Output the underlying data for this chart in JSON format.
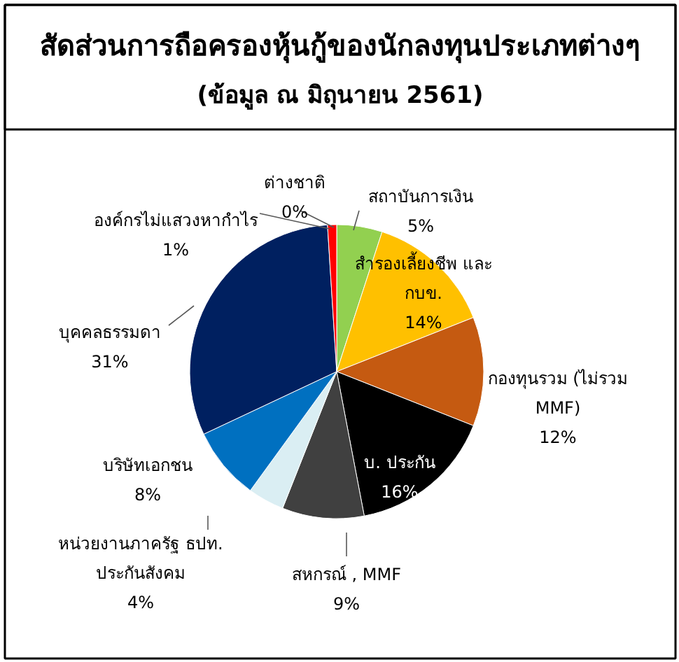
{
  "chart_data": {
    "type": "pie",
    "title": "สัดส่วนการถือครองหุ้นกู้ของนักลงทุนประเภทต่างๆ",
    "subtitle": "(ข้อมูล ณ มิถุนายน 2561)",
    "categories": [
      "ต่างชาติ",
      "สถาบันการเงิน",
      "สำรองเลี้ยงชีพ และ กบข.",
      "กองทุนรวม (ไม่รวม MMF)",
      "บ. ประกัน",
      "สหกรณ์ , MMF",
      "หน่วยงานภาครัฐ ธปท. ประกันสังคม",
      "บริษัทเอกชน",
      "บุคคลธรรมดา",
      "องค์กรไม่แสวงหากำไร"
    ],
    "values": [
      0,
      5,
      14,
      12,
      16,
      9,
      4,
      8,
      31,
      1
    ],
    "colors": [
      "#a6a6a6",
      "#92d050",
      "#ffc000",
      "#c55a11",
      "#000000",
      "#404040",
      "#daeef3",
      "#0070c0",
      "#002060",
      "#ff0000"
    ],
    "data_labels": true,
    "value_labels": [
      "0%",
      "5%",
      "14%",
      "12%",
      "16%",
      "9%",
      "4%",
      "8%",
      "31%",
      "1%"
    ]
  }
}
